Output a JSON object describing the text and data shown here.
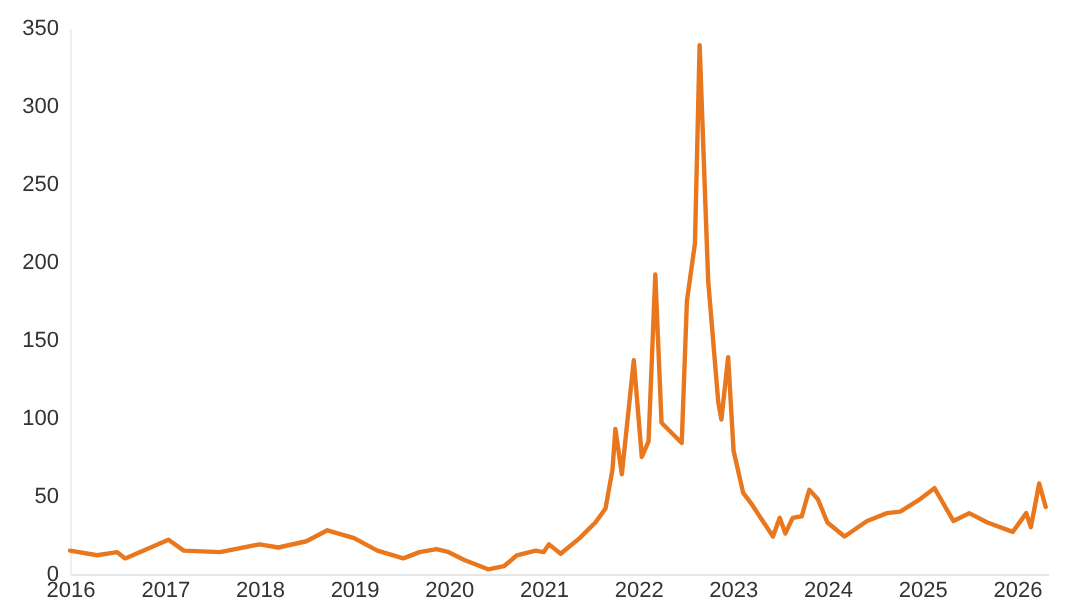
{
  "chart_data": {
    "type": "line",
    "xlim": [
      "2016-01-01",
      "2026-05-01"
    ],
    "xticks": [
      "2016",
      "2017",
      "2018",
      "2019",
      "2020",
      "2021",
      "2022",
      "2023",
      "2024",
      "2025",
      "2026"
    ],
    "ylim": [
      0,
      350
    ],
    "yticks": [
      0,
      50,
      100,
      150,
      200,
      250,
      300,
      350
    ],
    "grid": false,
    "marker": "none",
    "line_style": "solid",
    "series": [
      {
        "color": "#e8771e",
        "x": [
          "2016-01-01",
          "2016-04-15",
          "2016-07-01",
          "2016-08-01",
          "2017-01-15",
          "2017-03-15",
          "2017-08-01",
          "2018-01-01",
          "2018-03-15",
          "2018-07-01",
          "2018-09-20",
          "2019-01-01",
          "2019-04-01",
          "2019-07-10",
          "2019-09-10",
          "2019-11-15",
          "2020-01-01",
          "2020-03-01",
          "2020-06-01",
          "2020-08-01",
          "2020-09-20",
          "2020-12-01",
          "2021-01-01",
          "2021-01-22",
          "2021-03-08",
          "2021-05-20",
          "2021-07-20",
          "2021-08-28",
          "2021-09-24",
          "2021-10-05",
          "2021-10-30",
          "2021-12-15",
          "2022-01-15",
          "2022-02-10",
          "2022-03-08",
          "2022-04-01",
          "2022-06-18",
          "2022-07-08",
          "2022-08-08",
          "2022-08-26",
          "2022-09-28",
          "2022-11-06",
          "2022-11-18",
          "2022-12-14",
          "2023-01-04",
          "2023-02-10",
          "2023-03-14",
          "2023-06-05",
          "2023-07-01",
          "2023-07-23",
          "2023-08-20",
          "2023-09-24",
          "2023-10-23",
          "2023-11-25",
          "2024-01-01",
          "2024-03-07",
          "2024-06-02",
          "2024-08-18",
          "2024-10-08",
          "2024-12-24",
          "2025-02-17",
          "2025-05-01",
          "2025-07-01",
          "2025-09-09",
          "2025-12-16",
          "2026-02-06",
          "2026-02-24",
          "2026-03-28",
          "2026-04-22"
        ],
        "values": [
          15,
          12,
          14,
          10,
          22,
          15,
          14,
          19,
          17,
          21,
          28,
          23,
          15,
          10,
          14,
          16,
          14,
          9,
          3,
          5,
          12,
          15,
          14,
          19,
          13,
          23,
          33,
          42,
          67,
          93,
          64,
          137,
          75,
          85,
          192,
          97,
          84,
          175,
          212,
          339,
          188,
          110,
          99,
          139,
          79,
          52,
          45,
          24,
          36,
          26,
          36,
          37,
          54,
          48,
          33,
          24,
          34,
          39,
          40,
          48,
          55,
          34,
          39,
          33,
          27,
          39,
          30,
          58,
          43
        ]
      }
    ]
  }
}
